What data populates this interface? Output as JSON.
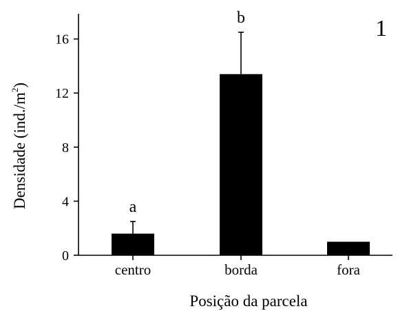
{
  "chart_data": {
    "type": "bar",
    "panel_label": "1",
    "xlabel": "Posição da parcela",
    "ylabel": "Densidade (ind./m",
    "ylabel_superscript": "2",
    "ylabel_close": ")",
    "categories": [
      "centro",
      "borda",
      "fora"
    ],
    "values": [
      1.6,
      13.4,
      1.0
    ],
    "error_upper": [
      2.5,
      16.5,
      null
    ],
    "significance_letters": [
      "a",
      "b",
      ""
    ],
    "ylim": [
      0,
      18
    ],
    "yticks": [
      0,
      4,
      8,
      12,
      16
    ],
    "ytick_labels": [
      "0",
      "4",
      "8",
      "12",
      "16"
    ],
    "grid": false,
    "legend": "none",
    "bar_color": "#000000"
  }
}
